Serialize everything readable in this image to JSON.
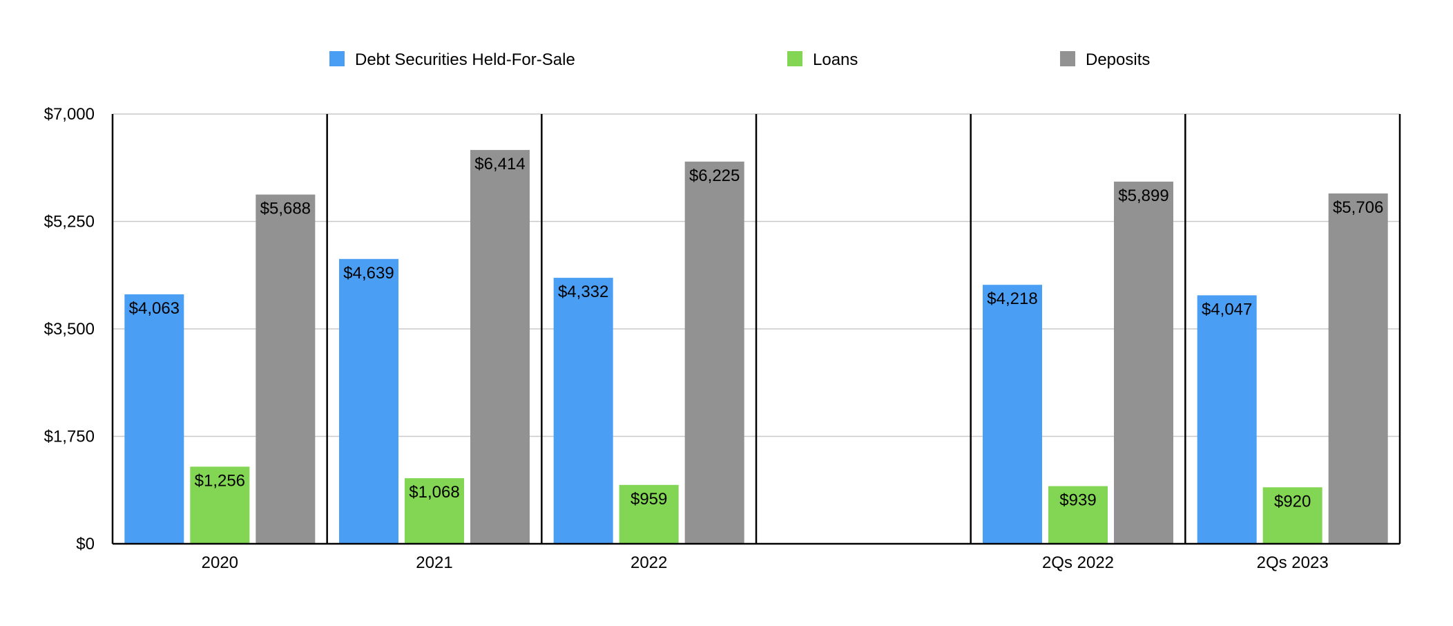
{
  "chart_data": {
    "type": "bar",
    "title": "",
    "xlabel": "",
    "ylabel": "",
    "categories": [
      "2020",
      "2021",
      "2022",
      "",
      "2Qs 2022",
      "2Qs 2023"
    ],
    "series": [
      {
        "name": "Debt Securities Held-For-Sale",
        "color": "#4A9FF5",
        "values": [
          4063,
          4639,
          4332,
          null,
          4218,
          4047
        ]
      },
      {
        "name": "Loans",
        "color": "#82D653",
        "values": [
          1256,
          1068,
          959,
          null,
          939,
          920
        ]
      },
      {
        "name": "Deposits",
        "color": "#929292",
        "values": [
          5688,
          6414,
          6225,
          null,
          5899,
          5706
        ]
      }
    ],
    "data_labels": [
      [
        "$4,063",
        "$4,639",
        "$4,332",
        null,
        "$4,218",
        "$4,047"
      ],
      [
        "$1,256",
        "$1,068",
        "$959",
        null,
        "$939",
        "$920"
      ],
      [
        "$5,688",
        "$6,414",
        "$6,225",
        null,
        "$5,899",
        "$5,706"
      ]
    ],
    "y_ticks": [
      0,
      1750,
      3500,
      5250,
      7000
    ],
    "y_tick_labels": [
      "$0",
      "$1,750",
      "$3,500",
      "$5,250",
      "$7,000"
    ],
    "ylim": [
      0,
      7000
    ],
    "grid": true,
    "legend_position": "top"
  }
}
